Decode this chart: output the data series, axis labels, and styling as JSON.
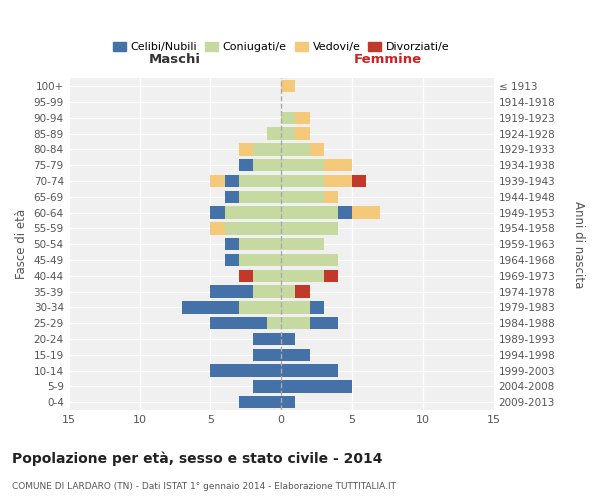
{
  "age_groups": [
    "0-4",
    "5-9",
    "10-14",
    "15-19",
    "20-24",
    "25-29",
    "30-34",
    "35-39",
    "40-44",
    "45-49",
    "50-54",
    "55-59",
    "60-64",
    "65-69",
    "70-74",
    "75-79",
    "80-84",
    "85-89",
    "90-94",
    "95-99",
    "100+"
  ],
  "birth_years": [
    "2009-2013",
    "2004-2008",
    "1999-2003",
    "1994-1998",
    "1989-1993",
    "1984-1988",
    "1979-1983",
    "1974-1978",
    "1969-1973",
    "1964-1968",
    "1959-1963",
    "1954-1958",
    "1949-1953",
    "1944-1948",
    "1939-1943",
    "1934-1938",
    "1929-1933",
    "1924-1928",
    "1919-1923",
    "1914-1918",
    "≤ 1913"
  ],
  "maschi": {
    "celibe": [
      3,
      2,
      5,
      2,
      2,
      4,
      4,
      3,
      0,
      1,
      1,
      0,
      1,
      1,
      1,
      1,
      0,
      0,
      0,
      0,
      0
    ],
    "coniugato": [
      0,
      0,
      0,
      0,
      0,
      1,
      3,
      2,
      2,
      3,
      3,
      4,
      4,
      3,
      3,
      2,
      2,
      1,
      0,
      0,
      0
    ],
    "vedovo": [
      0,
      0,
      0,
      0,
      0,
      0,
      0,
      0,
      0,
      0,
      0,
      1,
      0,
      0,
      1,
      0,
      1,
      0,
      0,
      0,
      0
    ],
    "divorziato": [
      0,
      0,
      0,
      0,
      0,
      0,
      0,
      0,
      1,
      0,
      0,
      0,
      0,
      0,
      0,
      0,
      0,
      0,
      0,
      0,
      0
    ]
  },
  "femmine": {
    "nubile": [
      1,
      5,
      4,
      2,
      1,
      2,
      1,
      0,
      0,
      0,
      0,
      0,
      1,
      0,
      0,
      0,
      0,
      0,
      0,
      0,
      0
    ],
    "coniugata": [
      0,
      0,
      0,
      0,
      0,
      2,
      2,
      1,
      3,
      4,
      3,
      4,
      4,
      3,
      3,
      3,
      2,
      1,
      1,
      0,
      0
    ],
    "vedova": [
      0,
      0,
      0,
      0,
      0,
      0,
      0,
      0,
      0,
      0,
      0,
      0,
      2,
      1,
      2,
      2,
      1,
      1,
      1,
      0,
      1
    ],
    "divorziata": [
      0,
      0,
      0,
      0,
      0,
      0,
      0,
      1,
      1,
      0,
      0,
      0,
      0,
      0,
      1,
      0,
      0,
      0,
      0,
      0,
      0
    ]
  },
  "colors": {
    "celibe": "#4472a8",
    "coniugato": "#c5d9a0",
    "vedovo": "#f5c97a",
    "divorziato": "#c0392b"
  },
  "title": "Popolazione per età, sesso e stato civile - 2014",
  "subtitle": "COMUNE DI LARDARO (TN) - Dati ISTAT 1° gennaio 2014 - Elaborazione TUTTITALIA.IT",
  "label_maschi": "Maschi",
  "label_femmine": "Femmine",
  "ylabel_left": "Fasce di età",
  "ylabel_right": "Anni di nascita",
  "xlim": 15,
  "bg_color": "#f0f0f0",
  "grid_color": "#ffffff",
  "legend_labels": [
    "Celibi/Nubili",
    "Coniugati/e",
    "Vedovi/e",
    "Divorziati/e"
  ]
}
